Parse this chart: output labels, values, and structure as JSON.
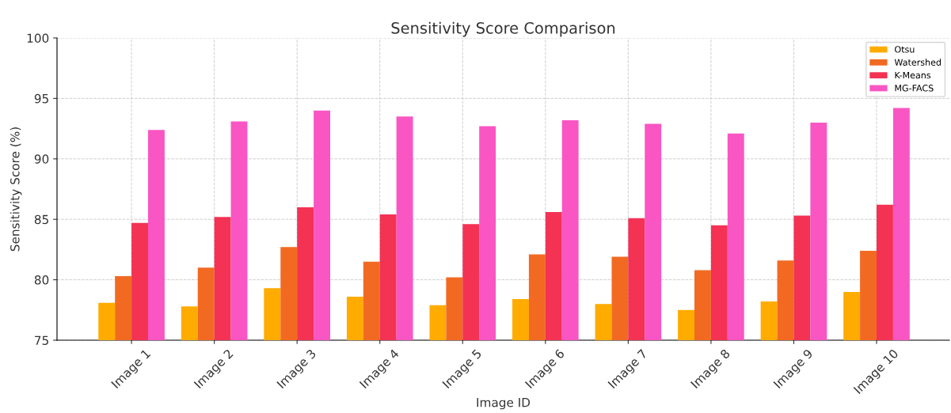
{
  "chart_data": {
    "type": "bar",
    "title": "Sensitivity Score Comparison",
    "xlabel": "Image ID",
    "ylabel": "Sensitivity Score (%)",
    "categories": [
      "Image 1",
      "Image 2",
      "Image 3",
      "Image 4",
      "Image 5",
      "Image 6",
      "Image 7",
      "Image 8",
      "Image 9",
      "Image 10"
    ],
    "series": [
      {
        "name": "Otsu",
        "color": "#ffab00",
        "values": [
          78.1,
          77.8,
          79.3,
          78.6,
          77.9,
          78.4,
          78.0,
          77.5,
          78.2,
          79.0
        ]
      },
      {
        "name": "Watershed",
        "color": "#f26a22",
        "values": [
          80.3,
          81.0,
          82.7,
          81.5,
          80.2,
          82.1,
          81.9,
          80.8,
          81.6,
          82.4
        ]
      },
      {
        "name": "K-Means",
        "color": "#f33254",
        "values": [
          84.7,
          85.2,
          86.0,
          85.4,
          84.6,
          85.6,
          85.1,
          84.5,
          85.3,
          86.2
        ]
      },
      {
        "name": "MG-FACS",
        "color": "#f956c3",
        "values": [
          92.4,
          93.1,
          94.0,
          93.5,
          92.7,
          93.2,
          92.9,
          92.1,
          93.0,
          94.2
        ]
      }
    ],
    "ylim": [
      75,
      100
    ],
    "yticks": [
      75,
      80,
      85,
      90,
      95,
      100
    ],
    "grid": true,
    "legend": "top right"
  }
}
